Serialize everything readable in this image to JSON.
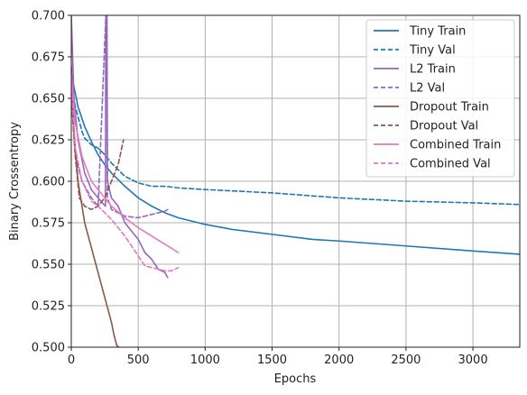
{
  "chart_data": {
    "type": "line",
    "title": "",
    "xlabel": "Epochs",
    "ylabel": "Binary Crossentropy",
    "xlim": [
      0,
      3350
    ],
    "ylim": [
      0.5,
      0.7
    ],
    "xticks": [
      0,
      500,
      1000,
      1500,
      2000,
      2500,
      3000
    ],
    "xtick_labels": [
      "0",
      "500",
      "1000",
      "1500",
      "2000",
      "2500",
      "3000"
    ],
    "yticks": [
      0.5,
      0.525,
      0.55,
      0.575,
      0.6,
      0.625,
      0.65,
      0.675,
      0.7
    ],
    "ytick_labels": [
      "0.500",
      "0.525",
      "0.550",
      "0.575",
      "0.600",
      "0.625",
      "0.650",
      "0.675",
      "0.700"
    ],
    "grid": true,
    "legend_position": "top-right",
    "series": [
      {
        "name": "Tiny Train",
        "color": "#1f77b4",
        "style": "solid",
        "x": [
          0,
          50,
          100,
          150,
          200,
          250,
          300,
          400,
          500,
          600,
          700,
          800,
          1000,
          1200,
          1500,
          1800,
          2000,
          2500,
          3000,
          3350
        ],
        "y": [
          0.665,
          0.645,
          0.633,
          0.624,
          0.616,
          0.61,
          0.605,
          0.597,
          0.59,
          0.585,
          0.581,
          0.578,
          0.574,
          0.571,
          0.568,
          0.565,
          0.564,
          0.561,
          0.558,
          0.556
        ]
      },
      {
        "name": "Tiny Val",
        "color": "#1f77b4",
        "style": "dashed",
        "x": [
          0,
          30,
          80,
          100,
          150,
          200,
          250,
          300,
          400,
          500,
          550,
          600,
          700,
          800,
          1000,
          1500,
          2000,
          2500,
          3000,
          3350
        ],
        "y": [
          0.66,
          0.645,
          0.63,
          0.626,
          0.622,
          0.62,
          0.616,
          0.611,
          0.603,
          0.599,
          0.598,
          0.597,
          0.597,
          0.596,
          0.595,
          0.593,
          0.59,
          0.588,
          0.587,
          0.586
        ]
      },
      {
        "name": "L2 Train",
        "color": "#9467bd",
        "style": "solid",
        "x": [
          0,
          20,
          50,
          100,
          150,
          200,
          255,
          258,
          262,
          266,
          270,
          300,
          350,
          400,
          450,
          500,
          550,
          600,
          650,
          700,
          720
        ],
        "y": [
          0.7,
          0.65,
          0.625,
          0.605,
          0.595,
          0.59,
          0.585,
          0.7,
          0.7,
          0.7,
          0.6,
          0.59,
          0.585,
          0.575,
          0.57,
          0.565,
          0.557,
          0.553,
          0.547,
          0.545,
          0.542
        ]
      },
      {
        "name": "L2 Val",
        "color": "#9467bd",
        "style": "dashed",
        "x": [
          0,
          30,
          80,
          150,
          200,
          258,
          262,
          266,
          270,
          300,
          400,
          500,
          600,
          700,
          720
        ],
        "y": [
          0.65,
          0.615,
          0.6,
          0.59,
          0.585,
          0.7,
          0.7,
          0.7,
          0.59,
          0.583,
          0.579,
          0.578,
          0.58,
          0.582,
          0.583
        ]
      },
      {
        "name": "Dropout Train",
        "color": "#8c564b",
        "style": "solid",
        "x": [
          0,
          20,
          50,
          100,
          150,
          200,
          250,
          300,
          320,
          340,
          355
        ],
        "y": [
          0.67,
          0.63,
          0.6,
          0.575,
          0.56,
          0.545,
          0.53,
          0.515,
          0.507,
          0.501,
          0.5
        ]
      },
      {
        "name": "Dropout Val",
        "color": "#8c564b",
        "style": "dashed",
        "x": [
          0,
          30,
          60,
          100,
          150,
          200,
          250,
          300,
          350,
          390
        ],
        "y": [
          0.655,
          0.615,
          0.59,
          0.585,
          0.583,
          0.585,
          0.59,
          0.6,
          0.61,
          0.625
        ]
      },
      {
        "name": "Combined Train",
        "color": "#e377c2",
        "style": "solid",
        "x": [
          0,
          30,
          80,
          150,
          200,
          300,
          400,
          500,
          600,
          700,
          800
        ],
        "y": [
          0.665,
          0.635,
          0.615,
          0.6,
          0.595,
          0.585,
          0.578,
          0.572,
          0.567,
          0.562,
          0.557
        ]
      },
      {
        "name": "Combined Val",
        "color": "#e377c2",
        "style": "dashed",
        "x": [
          0,
          30,
          80,
          150,
          200,
          300,
          400,
          500,
          550,
          600,
          650,
          700,
          750,
          800
        ],
        "y": [
          0.66,
          0.62,
          0.6,
          0.588,
          0.585,
          0.577,
          0.567,
          0.555,
          0.549,
          0.548,
          0.547,
          0.546,
          0.546,
          0.548
        ]
      }
    ]
  }
}
